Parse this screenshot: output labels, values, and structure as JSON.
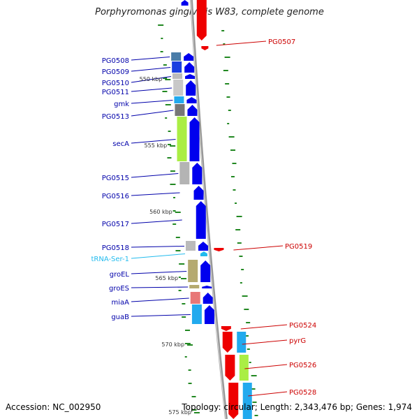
{
  "title": "Porphyromonas gingivalis W83, complete genome",
  "footer": {
    "accession": "Accession: NC_002950",
    "topology": "Topology: circular; Length: 2,343,476 bp; Genes: 1,974"
  },
  "colors": {
    "forward_cds": "#0000ee",
    "reverse_cds": "#ee0000",
    "left_label": "#0000aa",
    "right_label": "#cc0000",
    "trna": "#22bbee",
    "backbone": "#999999",
    "gc_marks": "#228822"
  },
  "axis": {
    "ticks": [
      "550 kbp",
      "555 kbp",
      "560 kbp",
      "565 kbp",
      "570 kbp",
      "575 kbp"
    ]
  },
  "genes_left": [
    {
      "name": "PG0508",
      "cog_color": "#4a7ca8"
    },
    {
      "name": "PG0509",
      "cog_color": "#1a3ee0"
    },
    {
      "name": "PG0510",
      "cog_color": "#bbbbbb"
    },
    {
      "name": "PG0511",
      "cog_color": "#c8c8c8"
    },
    {
      "name": "gmk",
      "cog_color": "#22aaee"
    },
    {
      "name": "PG0513",
      "cog_color": "#777777"
    },
    {
      "name": "secA",
      "cog_color": "#aaee44"
    },
    {
      "name": "PG0515",
      "cog_color": "#b4b4b4"
    },
    {
      "name": "PG0516",
      "cog_color": ""
    },
    {
      "name": "PG0517",
      "cog_color": ""
    },
    {
      "name": "PG0518",
      "cog_color": "#bbbbbb"
    },
    {
      "name": "tRNA-Ser-1",
      "cog_color": ""
    },
    {
      "name": "groEL",
      "cog_color": "#b5aa70"
    },
    {
      "name": "groES",
      "cog_color": "#b5aa70"
    },
    {
      "name": "miaA",
      "cog_color": "#e87777"
    },
    {
      "name": "guaB",
      "cog_color": "#22aaee"
    }
  ],
  "genes_right": [
    {
      "name": "PG0507"
    },
    {
      "name": "PG0519"
    },
    {
      "name": "PG0524"
    },
    {
      "name": "pyrG"
    },
    {
      "name": "PG0526"
    },
    {
      "name": "PG0528"
    }
  ]
}
